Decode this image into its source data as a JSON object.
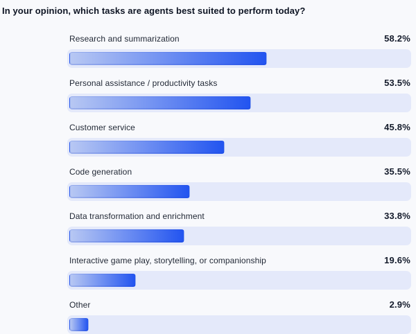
{
  "title": "In your opinion, which tasks are agents best suited to perform today?",
  "chart_data": {
    "type": "bar",
    "orientation": "horizontal",
    "title": "In your opinion, which tasks are agents best suited to perform today?",
    "categories": [
      "Research and summarization",
      "Personal assistance / productivity tasks",
      "Customer service",
      "Code generation",
      "Data transformation and enrichment",
      "Interactive game play, storytelling, or companionship",
      "Other"
    ],
    "values": [
      58.2,
      53.5,
      45.8,
      35.5,
      33.8,
      19.6,
      2.9
    ],
    "value_labels": [
      "58.2%",
      "53.5%",
      "45.8%",
      "35.5%",
      "33.8%",
      "19.6%",
      "2.9%"
    ],
    "xlabel": "",
    "ylabel": "",
    "xlim": [
      0,
      100
    ],
    "grid": false,
    "legend": false
  },
  "colors": {
    "background": "#f8f9fc",
    "track": "#e4e9fa",
    "bar_gradient_start": "#b8c8f3",
    "bar_gradient_end": "#2254f0",
    "title_text": "#0d1423",
    "label_text": "#222936",
    "value_text": "#141b2b"
  }
}
